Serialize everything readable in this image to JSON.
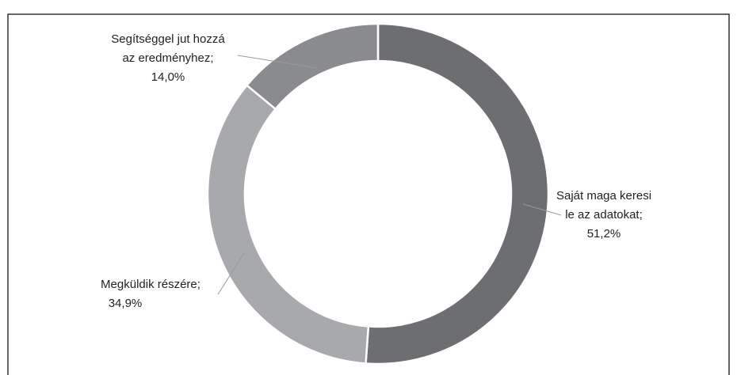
{
  "chart_data": {
    "type": "donut",
    "categories": [
      [
        "Saját maga keresi",
        "le az adatokat;"
      ],
      [
        "Megküldik részére;"
      ],
      [
        "Segítséggel jut hozzá",
        "az eredményhez;"
      ]
    ],
    "values": [
      51.2,
      34.9,
      14.0
    ],
    "value_labels": [
      "51,2%",
      "34,9%",
      "14,0%"
    ],
    "colors": [
      "#6d6e71",
      "#a7a9ac",
      "#8a8b8e"
    ]
  }
}
